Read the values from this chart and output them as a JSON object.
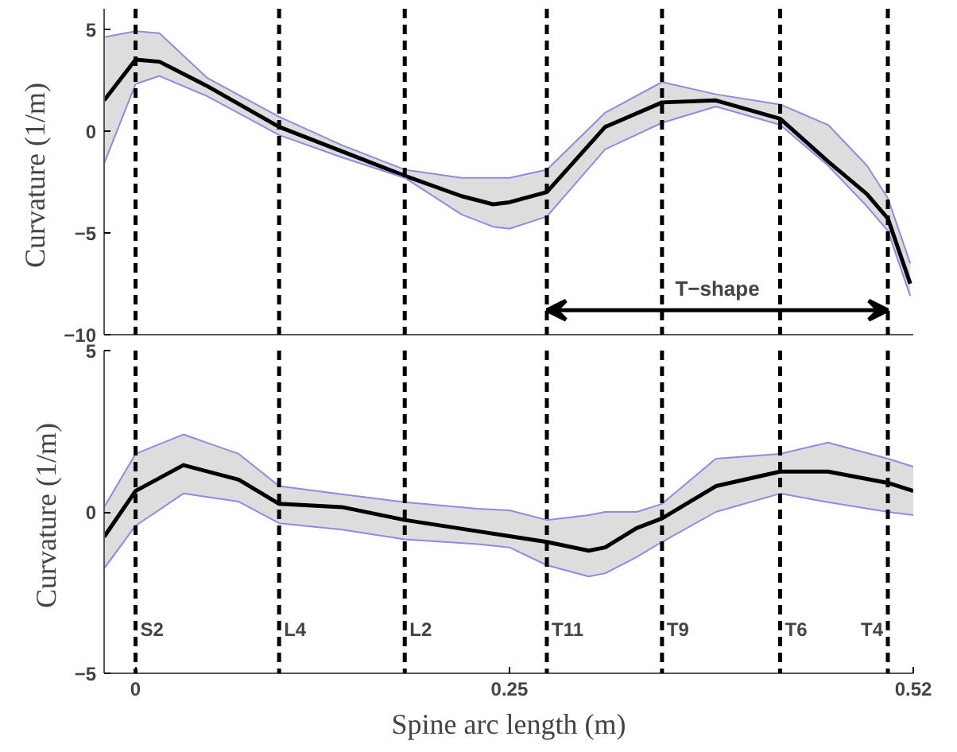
{
  "chart_data": [
    {
      "type": "line",
      "ylabel": "Curvature  (1/m)",
      "xlim": [
        -0.021,
        0.52
      ],
      "ylim": [
        -10,
        6
      ],
      "yticks": [
        -10,
        -5,
        0,
        5
      ],
      "tick_labels": "y",
      "grid": false,
      "line_style": "solid",
      "series": [
        {
          "color": "#000000",
          "x": [
            -0.021,
            0,
            0.016,
            0.048,
            0.096,
            0.138,
            0.18,
            0.218,
            0.239,
            0.25,
            0.275,
            0.314,
            0.352,
            0.388,
            0.431,
            0.463,
            0.489,
            0.503,
            0.518
          ],
          "values": [
            1.5,
            3.5,
            3.4,
            2.2,
            0.2,
            -1.0,
            -2.2,
            -3.2,
            -3.6,
            -3.5,
            -3.0,
            0.2,
            1.4,
            1.5,
            0.6,
            -1.5,
            -3.1,
            -4.3,
            -7.5
          ],
          "upper": [
            4.6,
            4.9,
            4.8,
            2.6,
            0.7,
            -0.7,
            -1.9,
            -2.3,
            -2.3,
            -2.3,
            -1.9,
            0.9,
            2.4,
            1.8,
            1.3,
            0.3,
            -1.7,
            -3.3,
            -6.5
          ],
          "lower": [
            -1.6,
            2.3,
            2.7,
            1.7,
            -0.2,
            -1.3,
            -2.3,
            -4.1,
            -4.7,
            -4.8,
            -4.2,
            -0.9,
            0.4,
            1.2,
            0.3,
            -1.7,
            -3.7,
            -4.9,
            -8.1
          ]
        },
        {
          "color": "#8c8ce0",
          "x": [
            -0.021,
            0,
            0.016,
            0.048,
            0.096,
            0.138,
            0.18,
            0.218,
            0.239,
            0.25,
            0.275,
            0.314,
            0.352,
            0.388,
            0.431,
            0.463,
            0.489,
            0.503,
            0.518
          ],
          "values": [
            4.6,
            4.9,
            4.8,
            2.6,
            0.7,
            -0.7,
            -1.9,
            -2.3,
            -2.3,
            -2.3,
            -1.9,
            0.9,
            2.4,
            1.8,
            1.3,
            0.3,
            -1.7,
            -3.3,
            -6.5
          ]
        },
        {
          "color": "#8c8ce0",
          "x": [
            -0.021,
            0,
            0.016,
            0.048,
            0.096,
            0.138,
            0.18,
            0.218,
            0.239,
            0.25,
            0.275,
            0.314,
            0.352,
            0.388,
            0.431,
            0.463,
            0.489,
            0.503,
            0.518
          ],
          "values": [
            -1.6,
            2.3,
            2.7,
            1.7,
            -0.2,
            -1.3,
            -2.3,
            -4.1,
            -4.7,
            -4.8,
            -4.2,
            -0.9,
            0.4,
            1.2,
            0.3,
            -1.7,
            -3.7,
            -4.9,
            -8.1
          ]
        }
      ],
      "ref_lines": [
        {
          "axis": "x",
          "value": 0,
          "line_style": "dashed"
        },
        {
          "axis": "x",
          "value": 0.096,
          "line_style": "dashed"
        },
        {
          "axis": "x",
          "value": 0.18,
          "line_style": "dashed"
        },
        {
          "axis": "x",
          "value": 0.275,
          "line_style": "dashed"
        },
        {
          "axis": "x",
          "value": 0.352,
          "line_style": "dashed"
        },
        {
          "axis": "x",
          "value": 0.431,
          "line_style": "dashed"
        },
        {
          "axis": "x",
          "value": 0.503,
          "line_style": "dashed"
        }
      ],
      "annotations": [
        "T−shape"
      ]
    },
    {
      "type": "line",
      "xlabel": "Spine arc length (m)",
      "ylabel": "Curvature  (1/m)",
      "xlim": [
        -0.021,
        0.52
      ],
      "xticks": [
        0,
        0.25,
        0.52
      ],
      "ylim": [
        -5,
        5
      ],
      "yticks": [
        -5,
        0,
        5
      ],
      "grid": false,
      "line_style": "solid",
      "series": [
        {
          "color": "#000000",
          "x": [
            -0.021,
            0,
            0.032,
            0.069,
            0.096,
            0.138,
            0.18,
            0.229,
            0.25,
            0.275,
            0.303,
            0.314,
            0.335,
            0.352,
            0.388,
            0.431,
            0.463,
            0.503,
            0.52
          ],
          "values": [
            -0.77,
            0.65,
            1.45,
            1.0,
            0.25,
            0.15,
            -0.25,
            -0.6,
            -0.75,
            -0.93,
            -1.2,
            -1.1,
            -0.5,
            -0.2,
            0.8,
            1.25,
            1.25,
            0.9,
            0.65
          ],
          "upper": [
            0.15,
            1.8,
            2.4,
            1.8,
            0.8,
            0.55,
            0.3,
            0.1,
            0.05,
            -0.25,
            -0.1,
            0.0,
            0.0,
            0.25,
            1.65,
            1.8,
            2.15,
            1.65,
            1.4
          ],
          "lower": [
            -1.75,
            -0.43,
            0.57,
            0.32,
            -0.35,
            -0.55,
            -0.85,
            -1.0,
            -1.1,
            -1.65,
            -2.0,
            -1.9,
            -1.4,
            -0.93,
            0.0,
            0.57,
            0.3,
            0.0,
            -0.1
          ]
        },
        {
          "color": "#8c8ce0",
          "x": [
            -0.021,
            0,
            0.032,
            0.069,
            0.096,
            0.138,
            0.18,
            0.229,
            0.25,
            0.275,
            0.303,
            0.314,
            0.335,
            0.352,
            0.388,
            0.431,
            0.463,
            0.503,
            0.52
          ],
          "values": [
            0.15,
            1.8,
            2.4,
            1.8,
            0.8,
            0.55,
            0.3,
            0.1,
            0.05,
            -0.25,
            -0.1,
            0.0,
            0.0,
            0.25,
            1.65,
            1.8,
            2.15,
            1.65,
            1.4
          ]
        },
        {
          "color": "#8c8ce0",
          "x": [
            -0.021,
            0,
            0.032,
            0.069,
            0.096,
            0.138,
            0.18,
            0.229,
            0.25,
            0.275,
            0.303,
            0.314,
            0.335,
            0.352,
            0.388,
            0.431,
            0.463,
            0.503,
            0.52
          ],
          "values": [
            -1.75,
            -0.43,
            0.57,
            0.32,
            -0.35,
            -0.55,
            -0.85,
            -1.0,
            -1.1,
            -1.65,
            -2.0,
            -1.9,
            -1.4,
            -0.93,
            0.0,
            0.57,
            0.3,
            0.0,
            -0.1
          ]
        }
      ],
      "ref_lines": [
        {
          "axis": "x",
          "value": 0,
          "label": "S2",
          "line_style": "dashed"
        },
        {
          "axis": "x",
          "value": 0.096,
          "label": "L4",
          "line_style": "dashed"
        },
        {
          "axis": "x",
          "value": 0.18,
          "label": "L2",
          "line_style": "dashed"
        },
        {
          "axis": "x",
          "value": 0.275,
          "label": "T11",
          "line_style": "dashed"
        },
        {
          "axis": "x",
          "value": 0.352,
          "label": "T9",
          "line_style": "dashed"
        },
        {
          "axis": "x",
          "value": 0.431,
          "label": "T6",
          "line_style": "dashed"
        },
        {
          "axis": "x",
          "value": 0.503,
          "label": "T4",
          "line_style": "dashed"
        }
      ]
    }
  ]
}
